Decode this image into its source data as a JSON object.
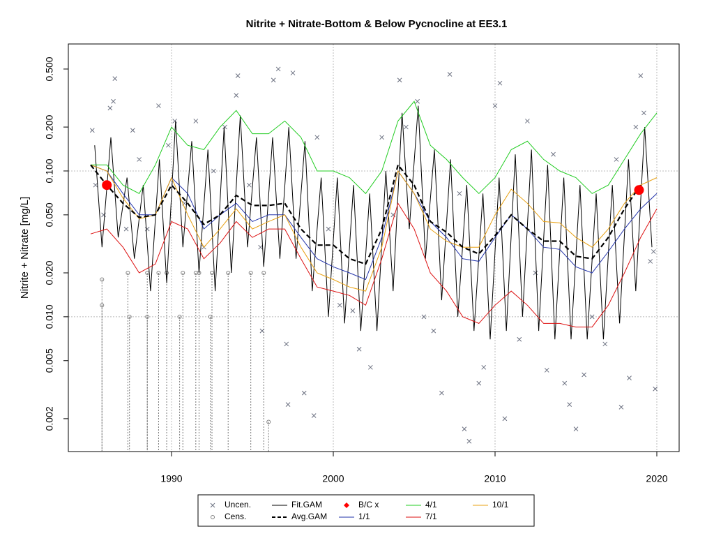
{
  "chart_data": {
    "type": "line",
    "title": "Nitrite + Nitrate-Bottom & Below Pycnocline at EE3.1",
    "ylabel": "Nitrite + Nitrate [mg/L]",
    "log_y": true,
    "xlim": [
      1983.62,
      2021.38
    ],
    "ylim": [
      0.00119,
      0.743
    ],
    "xticks": [
      1990,
      2000,
      2010,
      2020
    ],
    "yticks": [
      0.002,
      0.005,
      {
        "value": 0.01,
        "label": "0.010"
      },
      {
        "value": 0.02,
        "label": "0.020"
      },
      {
        "value": 0.05,
        "label": "0.050"
      },
      {
        "value": 0.1,
        "label": "0.100"
      },
      {
        "value": 0.2,
        "label": "0.200"
      },
      {
        "value": 0.5,
        "label": "0.500"
      }
    ],
    "ygrid": [
      0.01,
      0.1
    ],
    "xgrid": true,
    "legend": "bottom",
    "series": [
      {
        "name": "Uncen.",
        "marker": "x",
        "color": "#6b7080",
        "x": [
          1985.1,
          1985.3,
          1985.8,
          1986.2,
          1986.5,
          1986.4,
          1987.2,
          1987.6,
          1988,
          1988.5,
          1989.2,
          1989.8,
          1990.2,
          1990.8,
          1991.5,
          1992,
          1992.6,
          1993.3,
          1994,
          1994.1,
          1994.8,
          1995.5,
          1995.6,
          1996.3,
          1996.6,
          1997.1,
          1997.2,
          1997.5,
          1998.2,
          1998.8,
          1999,
          1999.7,
          2000.4,
          2001.2,
          2001.6,
          2002.3,
          2003,
          2003.7,
          2004.1,
          2004.5,
          2005.2,
          2005.6,
          2006.2,
          2006.7,
          2007.2,
          2007.8,
          2008.1,
          2008.4,
          2009,
          2009.3,
          2010,
          2010.3,
          2010.6,
          2011.5,
          2012,
          2012.5,
          2013.2,
          2013.6,
          2014.3,
          2014.6,
          2015,
          2015.5,
          2016,
          2016.8,
          2017.5,
          2017.8,
          2018.3,
          2018.7,
          2019,
          2019.2,
          2019.6,
          2019.8,
          2019.9
        ],
        "values": [
          0.19,
          0.08,
          0.05,
          0.27,
          0.43,
          0.3,
          0.04,
          0.19,
          0.12,
          0.04,
          0.28,
          0.15,
          0.22,
          0.06,
          0.22,
          0.03,
          0.1,
          0.2,
          0.33,
          0.45,
          0.08,
          0.03,
          0.008,
          0.42,
          0.5,
          0.0065,
          0.0025,
          0.47,
          0.003,
          0.0021,
          0.17,
          0.04,
          0.012,
          0.011,
          0.006,
          0.0045,
          0.17,
          0.05,
          0.42,
          0.2,
          0.3,
          0.01,
          0.008,
          0.003,
          0.46,
          0.07,
          0.0017,
          0.0014,
          0.0035,
          0.0045,
          0.28,
          0.4,
          0.002,
          0.007,
          0.22,
          0.02,
          0.0043,
          0.13,
          0.0035,
          0.0025,
          0.0017,
          0.004,
          0.01,
          0.0065,
          0.12,
          0.0024,
          0.0038,
          0.2,
          0.45,
          0.25,
          0.024,
          0.028,
          0.0032
        ]
      },
      {
        "name": "Cens.",
        "marker": "circle",
        "color": "#808080",
        "x": [
          1985.7,
          1985.7,
          1987.3,
          1987.4,
          1988.5,
          1988.5,
          1989.2,
          1989.7,
          1990.5,
          1990.7,
          1991.5,
          1991.7,
          1992.4,
          1992.5,
          1993.5,
          1994.9,
          1995.7,
          1996
        ],
        "values": [
          0.018,
          0.012,
          0.02,
          0.01,
          0.02,
          0.01,
          0.02,
          0.02,
          0.01,
          0.02,
          0.02,
          0.02,
          0.01,
          0.02,
          0.02,
          0.02,
          0.02,
          0.0019
        ]
      },
      {
        "name": "Fit.GAM",
        "marker": "line",
        "color": "#000000",
        "x": [
          1985.25,
          1985.7,
          1986.25,
          1986.7,
          1987.25,
          1987.7,
          1988.25,
          1988.7,
          1989.25,
          1989.7,
          1990.25,
          1990.7,
          1991.25,
          1991.7,
          1992.25,
          1992.7,
          1993.25,
          1993.7,
          1994.25,
          1994.7,
          1995.25,
          1995.7,
          1996.25,
          1996.7,
          1997.25,
          1997.7,
          1998.25,
          1998.7,
          1999.25,
          1999.7,
          2000.25,
          2000.7,
          2001.25,
          2001.7,
          2002.25,
          2002.7,
          2003.25,
          2003.7,
          2004.25,
          2004.7,
          2005.25,
          2005.7,
          2006.25,
          2006.7,
          2007.25,
          2007.7,
          2008.25,
          2008.7,
          2009.25,
          2009.7,
          2010.25,
          2010.7,
          2011.25,
          2011.7,
          2012.25,
          2012.7,
          2013.25,
          2013.7,
          2014.25,
          2014.7,
          2015.25,
          2015.7,
          2016.25,
          2016.7,
          2017.25,
          2017.7,
          2018.25,
          2018.7,
          2019.25,
          2019.7
        ],
        "values": [
          0.15,
          0.03,
          0.17,
          0.035,
          0.09,
          0.025,
          0.08,
          0.015,
          0.12,
          0.017,
          0.22,
          0.03,
          0.16,
          0.02,
          0.14,
          0.015,
          0.2,
          0.02,
          0.24,
          0.03,
          0.17,
          0.022,
          0.17,
          0.025,
          0.2,
          0.025,
          0.16,
          0.015,
          0.09,
          0.01,
          0.09,
          0.009,
          0.08,
          0.008,
          0.07,
          0.008,
          0.1,
          0.015,
          0.25,
          0.04,
          0.28,
          0.025,
          0.14,
          0.013,
          0.12,
          0.01,
          0.08,
          0.008,
          0.07,
          0.007,
          0.09,
          0.008,
          0.13,
          0.01,
          0.14,
          0.008,
          0.11,
          0.007,
          0.09,
          0.007,
          0.08,
          0.007,
          0.07,
          0.007,
          0.08,
          0.009,
          0.12,
          0.015,
          0.2,
          0.03
        ]
      },
      {
        "name": "Avg.GAM",
        "marker": "dashed",
        "color": "#000000",
        "x": [
          1985,
          1986,
          1987,
          1988,
          1989,
          1990,
          1991,
          1992,
          1993,
          1994,
          1995,
          1996,
          1997,
          1998,
          1999,
          2000,
          2001,
          2002,
          2003,
          2004,
          2005,
          2006,
          2007,
          2008,
          2009,
          2010,
          2011,
          2012,
          2013,
          2014,
          2015,
          2016,
          2017,
          2018,
          2019
        ],
        "values": [
          0.11,
          0.08,
          0.06,
          0.048,
          0.05,
          0.08,
          0.06,
          0.043,
          0.05,
          0.068,
          0.058,
          0.058,
          0.06,
          0.04,
          0.031,
          0.031,
          0.025,
          0.023,
          0.04,
          0.11,
          0.08,
          0.045,
          0.038,
          0.03,
          0.027,
          0.036,
          0.05,
          0.04,
          0.033,
          0.033,
          0.026,
          0.025,
          0.035,
          0.055,
          0.08
        ]
      },
      {
        "name": "B/C x",
        "marker": "dot",
        "color": "#ff0000",
        "x": [
          1986,
          2018.9
        ],
        "values": [
          0.08,
          0.074
        ]
      },
      {
        "name": "1/1",
        "marker": "line",
        "color": "#2233aa",
        "x": [
          1985,
          1986,
          1987,
          1988,
          1989,
          1990,
          1991,
          1992,
          1993,
          1994,
          1995,
          1996,
          1997,
          1998,
          1999,
          2000,
          2001,
          2002,
          2003,
          2004,
          2005,
          2006,
          2007,
          2008,
          2009,
          2010,
          2011,
          2012,
          2013,
          2014,
          2015,
          2016,
          2017,
          2018,
          2019,
          2020
        ],
        "values": [
          0.11,
          0.1,
          0.07,
          0.05,
          0.05,
          0.09,
          0.07,
          0.04,
          0.05,
          0.06,
          0.045,
          0.05,
          0.05,
          0.035,
          0.025,
          0.022,
          0.02,
          0.018,
          0.035,
          0.1,
          0.07,
          0.045,
          0.035,
          0.025,
          0.024,
          0.035,
          0.05,
          0.04,
          0.03,
          0.029,
          0.022,
          0.02,
          0.028,
          0.04,
          0.055,
          0.07
        ]
      },
      {
        "name": "4/1",
        "marker": "line",
        "color": "#22cc22",
        "x": [
          1985,
          1986,
          1987,
          1988,
          1989,
          1990,
          1991,
          1992,
          1993,
          1994,
          1995,
          1996,
          1997,
          1998,
          1999,
          2000,
          2001,
          2002,
          2003,
          2004,
          2005,
          2006,
          2007,
          2008,
          2009,
          2010,
          2011,
          2012,
          2013,
          2014,
          2015,
          2016,
          2017,
          2018,
          2019,
          2020
        ],
        "values": [
          0.11,
          0.11,
          0.08,
          0.07,
          0.11,
          0.2,
          0.15,
          0.14,
          0.2,
          0.26,
          0.18,
          0.18,
          0.22,
          0.17,
          0.1,
          0.1,
          0.09,
          0.07,
          0.1,
          0.22,
          0.3,
          0.15,
          0.12,
          0.09,
          0.07,
          0.09,
          0.14,
          0.16,
          0.12,
          0.1,
          0.09,
          0.07,
          0.08,
          0.12,
          0.18,
          0.25
        ]
      },
      {
        "name": "7/1",
        "marker": "line",
        "color": "#dd1111",
        "x": [
          1985,
          1986,
          1987,
          1988,
          1989,
          1990,
          1991,
          1992,
          1993,
          1994,
          1995,
          1996,
          1997,
          1998,
          1999,
          2000,
          2001,
          2002,
          2003,
          2004,
          2005,
          2006,
          2007,
          2008,
          2009,
          2010,
          2011,
          2012,
          2013,
          2014,
          2015,
          2016,
          2017,
          2018,
          2019,
          2020
        ],
        "values": [
          0.037,
          0.04,
          0.03,
          0.02,
          0.023,
          0.045,
          0.04,
          0.025,
          0.032,
          0.045,
          0.035,
          0.04,
          0.04,
          0.025,
          0.016,
          0.015,
          0.014,
          0.012,
          0.025,
          0.06,
          0.04,
          0.02,
          0.015,
          0.01,
          0.009,
          0.012,
          0.015,
          0.012,
          0.009,
          0.009,
          0.0085,
          0.0085,
          0.012,
          0.02,
          0.035,
          0.055
        ]
      },
      {
        "name": "10/1",
        "marker": "line",
        "color": "#e8a010",
        "x": [
          1985,
          1986,
          1987,
          1988,
          1989,
          1990,
          1991,
          1992,
          1993,
          1994,
          1995,
          1996,
          1997,
          1998,
          1999,
          2000,
          2001,
          2002,
          2003,
          2004,
          2005,
          2006,
          2007,
          2008,
          2009,
          2010,
          2011,
          2012,
          2013,
          2014,
          2015,
          2016,
          2017,
          2018,
          2019,
          2020
        ],
        "values": [
          0.11,
          0.1,
          0.065,
          0.047,
          0.05,
          0.09,
          0.05,
          0.03,
          0.04,
          0.055,
          0.04,
          0.045,
          0.05,
          0.03,
          0.02,
          0.018,
          0.016,
          0.015,
          0.03,
          0.1,
          0.07,
          0.04,
          0.033,
          0.03,
          0.03,
          0.05,
          0.075,
          0.06,
          0.045,
          0.044,
          0.035,
          0.03,
          0.04,
          0.06,
          0.08,
          0.09
        ]
      }
    ]
  }
}
